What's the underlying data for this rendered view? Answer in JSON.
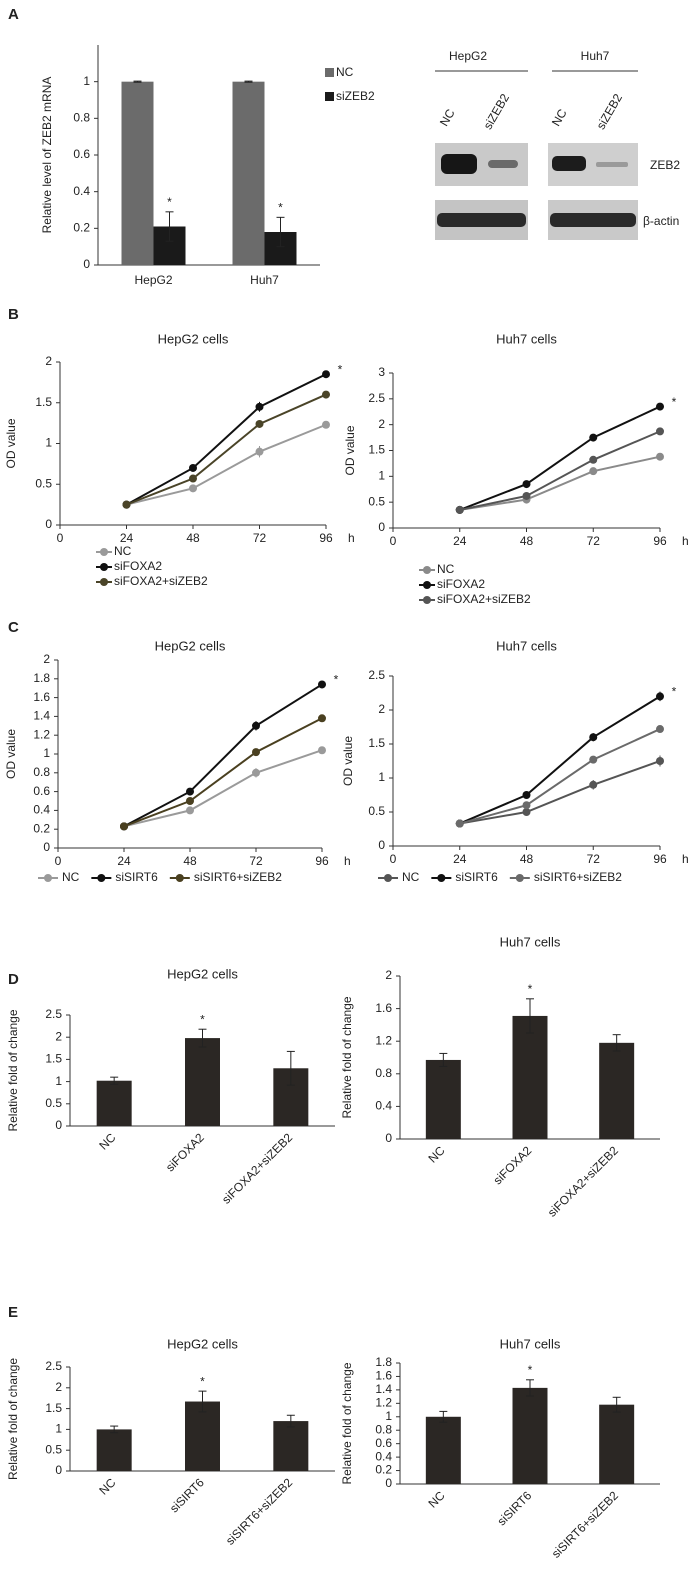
{
  "chart_data": [
    {
      "type": "bar",
      "panel": "A",
      "ylabel": "Relative level of ZEB2 mRNA",
      "categories": [
        "HepG2",
        "Huh7"
      ],
      "series": [
        {
          "name": "NC",
          "color": "#6b6b6b",
          "values": [
            1,
            1
          ],
          "errors": [
            0.003,
            0.003
          ]
        },
        {
          "name": "siZEB2",
          "color": "#1a1a1a",
          "values": [
            0.21,
            0.18
          ],
          "errors": [
            0.08,
            0.08
          ]
        }
      ],
      "ylim": [
        0,
        1.2
      ],
      "yticks": [
        0,
        0.2,
        0.4,
        0.6,
        0.8,
        1
      ],
      "legend": "top-right",
      "annotations": [
        {
          "text": "*",
          "series": 1,
          "index": 0
        },
        {
          "text": "*",
          "series": 1,
          "index": 1
        }
      ]
    },
    {
      "type": "line",
      "panel": "B",
      "title": "HepG2 cells",
      "ylabel": "OD value",
      "xlabel": "h",
      "x": [
        24,
        48,
        72,
        96
      ],
      "series": [
        {
          "name": "NC",
          "color": "#9a9a9a",
          "values": [
            0.25,
            0.45,
            0.9,
            1.23
          ],
          "errors": [
            0.02,
            0.03,
            0.07,
            0.04
          ]
        },
        {
          "name": "siFOXA2",
          "color": "#111111",
          "values": [
            0.25,
            0.7,
            1.45,
            1.85
          ],
          "errors": [
            0.02,
            0.03,
            0.06,
            0.03
          ]
        },
        {
          "name": "siFOXA2+siZEB2",
          "color": "#4a4428",
          "values": [
            0.25,
            0.57,
            1.24,
            1.6
          ],
          "errors": [
            0.02,
            0.03,
            0.04,
            0.03
          ]
        }
      ],
      "xlim": [
        0,
        96
      ],
      "xticks": [
        0,
        24,
        48,
        72,
        96
      ],
      "ylim": [
        0,
        2
      ],
      "yticks": [
        0,
        0.5,
        1,
        1.5,
        2
      ],
      "legend": "bottom-left",
      "annotations": [
        {
          "text": "*",
          "series": 1,
          "index": 3
        }
      ]
    },
    {
      "type": "line",
      "title": "Huh7 cells",
      "ylabel": "OD value",
      "xlabel": "h",
      "x": [
        24,
        48,
        72,
        96
      ],
      "series": [
        {
          "name": "NC",
          "color": "#8a8a8a",
          "values": [
            0.35,
            0.55,
            1.1,
            1.38
          ],
          "errors": [
            0.03,
            0.05,
            0.06,
            0.07
          ]
        },
        {
          "name": "siFOXA2",
          "color": "#111111",
          "values": [
            0.35,
            0.85,
            1.75,
            2.35
          ],
          "errors": [
            0.03,
            0.04,
            0.06,
            0.07
          ]
        },
        {
          "name": "siFOXA2+siZEB2",
          "color": "#555555",
          "values": [
            0.35,
            0.62,
            1.32,
            1.87
          ],
          "errors": [
            0.03,
            0.04,
            0.05,
            0.04
          ]
        }
      ],
      "xlim": [
        0,
        96
      ],
      "xticks": [
        0,
        24,
        48,
        72,
        96
      ],
      "ylim": [
        0,
        3
      ],
      "yticks": [
        0,
        0.5,
        1,
        1.5,
        2,
        2.5,
        3
      ],
      "legend": "bottom-left",
      "annotations": [
        {
          "text": "*",
          "series": 1,
          "index": 3
        }
      ]
    },
    {
      "type": "line",
      "panel": "C",
      "title": "HepG2 cells",
      "ylabel": "OD value",
      "xlabel": "h",
      "x": [
        24,
        48,
        72,
        96
      ],
      "series": [
        {
          "name": "NC",
          "color": "#9a9a9a",
          "values": [
            0.23,
            0.4,
            0.8,
            1.04
          ],
          "errors": [
            0.02,
            0.03,
            0.05,
            0.04
          ]
        },
        {
          "name": "siSIRT6",
          "color": "#111111",
          "values": [
            0.23,
            0.6,
            1.3,
            1.74
          ],
          "errors": [
            0.02,
            0.03,
            0.05,
            0.03
          ]
        },
        {
          "name": "siSIRT6+siZEB2",
          "color": "#4a4020",
          "values": [
            0.23,
            0.5,
            1.02,
            1.38
          ],
          "errors": [
            0.02,
            0.03,
            0.03,
            0.02
          ]
        }
      ],
      "xlim": [
        0,
        96
      ],
      "xticks": [
        0,
        24,
        48,
        72,
        96
      ],
      "ylim": [
        0,
        2
      ],
      "yticks": [
        0,
        0.2,
        0.4,
        0.6,
        0.8,
        1,
        1.2,
        1.4,
        1.6,
        1.8,
        2
      ],
      "legend": "bottom",
      "annotations": [
        {
          "text": "*",
          "series": 1,
          "index": 3
        }
      ]
    },
    {
      "type": "line",
      "title": "Huh7 cells",
      "ylabel": "OD value",
      "xlabel": "h",
      "x": [
        24,
        48,
        72,
        96
      ],
      "series": [
        {
          "name": "NC",
          "color": "#555555",
          "values": [
            0.33,
            0.5,
            0.9,
            1.25
          ],
          "errors": [
            0.02,
            0.03,
            0.07,
            0.08
          ]
        },
        {
          "name": "siSIRT6",
          "color": "#111111",
          "values": [
            0.33,
            0.75,
            1.6,
            2.2
          ],
          "errors": [
            0.02,
            0.03,
            0.06,
            0.07
          ]
        },
        {
          "name": "siSIRT6+siZEB2",
          "color": "#6a6a6a",
          "values": [
            0.33,
            0.6,
            1.27,
            1.72
          ],
          "errors": [
            0.02,
            0.03,
            0.03,
            0.03
          ]
        }
      ],
      "xlim": [
        0,
        96
      ],
      "xticks": [
        0,
        24,
        48,
        72,
        96
      ],
      "ylim": [
        0,
        2.5
      ],
      "yticks": [
        0,
        0.5,
        1,
        1.5,
        2,
        2.5
      ],
      "legend": "bottom",
      "annotations": [
        {
          "text": "*",
          "series": 1,
          "index": 3
        }
      ]
    },
    {
      "type": "bar",
      "panel": "D",
      "title": "HepG2 cells",
      "ylabel": "Relative fold of change",
      "categories": [
        "NC",
        "siFOXA2",
        "siFOXA2+siZEB2"
      ],
      "values": [
        1.02,
        1.98,
        1.3
      ],
      "errors": [
        0.08,
        0.2,
        0.38
      ],
      "color": "#2b2724",
      "ylim": [
        0,
        2.5
      ],
      "yticks": [
        0,
        0.5,
        1,
        1.5,
        2,
        2.5
      ],
      "annotations": [
        {
          "text": "*",
          "index": 1
        }
      ]
    },
    {
      "type": "bar",
      "title": "Huh7 cells",
      "ylabel": "Relative fold of change",
      "categories": [
        "NC",
        "siFOXA2",
        "siFOXA2+siZEB2"
      ],
      "values": [
        0.97,
        1.51,
        1.18
      ],
      "errors": [
        0.08,
        0.21,
        0.1
      ],
      "color": "#2b2724",
      "ylim": [
        0,
        2
      ],
      "yticks": [
        0,
        0.4,
        0.8,
        1.2,
        1.6,
        2
      ],
      "annotations": [
        {
          "text": "*",
          "index": 1
        }
      ]
    },
    {
      "type": "bar",
      "panel": "E",
      "title": "HepG2 cells",
      "ylabel": "Relative fold of change",
      "categories": [
        "NC",
        "siSIRT6",
        "siSIRT6+siZEB2"
      ],
      "values": [
        1.0,
        1.67,
        1.2
      ],
      "errors": [
        0.08,
        0.25,
        0.14
      ],
      "color": "#2b2724",
      "ylim": [
        0,
        2.5
      ],
      "yticks": [
        0,
        0.5,
        1,
        1.5,
        2,
        2.5
      ],
      "annotations": [
        {
          "text": "*",
          "index": 1
        }
      ]
    },
    {
      "type": "bar",
      "title": "Huh7 cells",
      "ylabel": "Relative fold of change",
      "categories": [
        "NC",
        "siSIRT6",
        "siSIRT6+siZEB2"
      ],
      "values": [
        1.0,
        1.43,
        1.18
      ],
      "errors": [
        0.08,
        0.12,
        0.11
      ],
      "color": "#2b2724",
      "ylim": [
        0,
        1.8
      ],
      "yticks": [
        0,
        0.2,
        0.4,
        0.6,
        0.8,
        1,
        1.2,
        1.4,
        1.6,
        1.8
      ],
      "annotations": [
        {
          "text": "*",
          "index": 1
        }
      ]
    }
  ],
  "blot": {
    "cell_lines": [
      "HepG2",
      "Huh7"
    ],
    "lanes": [
      "NC",
      "siZEB2",
      "NC",
      "siZEB2"
    ],
    "proteins": [
      "ZEB2",
      "β-actin"
    ]
  }
}
